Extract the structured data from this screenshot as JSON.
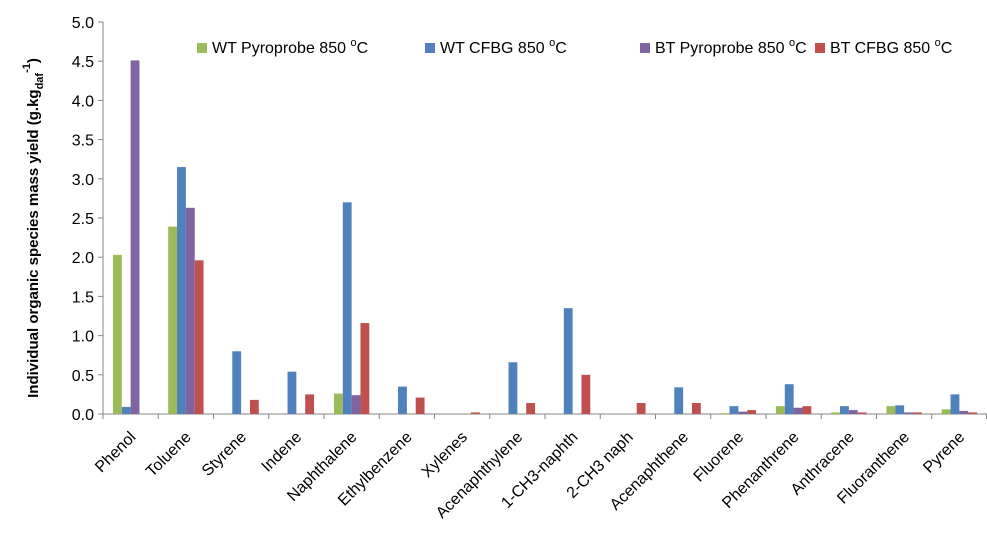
{
  "chart_data": {
    "type": "bar",
    "title": "",
    "xlabel": "",
    "ylabel": {
      "main": "Individual organic species mass yield (g.kg",
      "sub": "daf",
      "sup": "-1",
      "close": ")"
    },
    "ylim": [
      0,
      5.0
    ],
    "yticks": [
      "0.0",
      "0.5",
      "1.0",
      "1.5",
      "2.0",
      "2.5",
      "3.0",
      "3.5",
      "4.0",
      "4.5",
      "5.0"
    ],
    "grid": false,
    "legend_position": "top-right",
    "categories": [
      "Phenol",
      "Toluene",
      "Styrene",
      "Indene",
      "Naphthalene",
      "Ethylbenzene",
      "Xylenes",
      "Acenaphthylene",
      "1-CH3-naphth",
      "2-CH3 naph",
      "Acenaphthene",
      "Fluorene",
      "Phenanthrene",
      "Anthracene",
      "Fluoranthene",
      "Pyrene"
    ],
    "series": [
      {
        "name": "WT Pyroprobe 850 ",
        "sup": "o",
        "unit": "C",
        "color": "#9BBB59",
        "values": [
          2.03,
          2.39,
          0,
          0,
          0.26,
          0,
          0,
          0,
          0,
          0,
          0,
          0.01,
          0.1,
          0.02,
          0.1,
          0.06
        ]
      },
      {
        "name": "WT CFBG 850 ",
        "sup": "o",
        "unit": "C",
        "color": "#4F81BD",
        "values": [
          0.09,
          3.15,
          0.8,
          0.54,
          2.7,
          0.35,
          0,
          0.66,
          1.35,
          0,
          0.34,
          0.1,
          0.38,
          0.1,
          0.11,
          0.25
        ]
      },
      {
        "name": "BT Pyroprobe 850 ",
        "sup": "o",
        "unit": "C",
        "color": "#8064A2",
        "values": [
          4.51,
          2.63,
          0,
          0,
          0.24,
          0,
          0,
          0,
          0,
          0,
          0,
          0.03,
          0.08,
          0.05,
          0.02,
          0.04
        ]
      },
      {
        "name": "BT CFBG 850 ",
        "sup": "o",
        "unit": "C",
        "color": "#C0504D",
        "values": [
          0,
          1.96,
          0.18,
          0.25,
          1.16,
          0.21,
          0.02,
          0.14,
          0.5,
          0.14,
          0.14,
          0.05,
          0.1,
          0.02,
          0.02,
          0.02
        ]
      }
    ]
  }
}
